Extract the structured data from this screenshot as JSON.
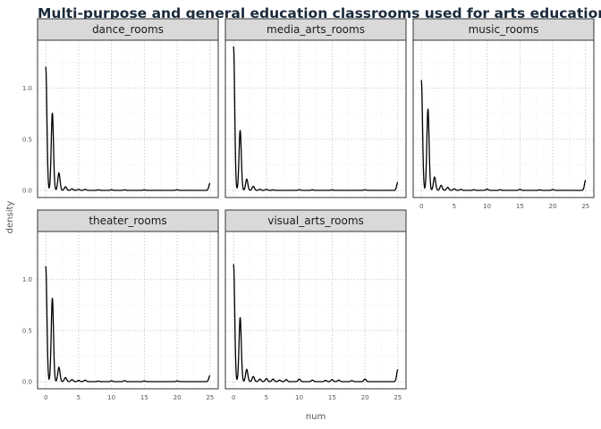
{
  "chart_data": {
    "type": "area",
    "title": "Multi-purpose and general education classrooms used for arts education",
    "xlabel": "num",
    "ylabel": "density",
    "xlim": [
      -1.25,
      26.25
    ],
    "ylim": [
      -0.07,
      1.47
    ],
    "x_ticks": [
      0,
      5,
      10,
      15,
      20,
      25
    ],
    "y_ticks": [
      0.0,
      0.5,
      1.0
    ],
    "y_tick_labels": [
      "0.0",
      "0.5",
      "1.0"
    ],
    "grid": true,
    "panels": [
      {
        "name": "dance_rooms",
        "peaks": [
          [
            0,
            1.21
          ],
          [
            1,
            0.76
          ],
          [
            2,
            0.17
          ],
          [
            3,
            0.035
          ],
          [
            4,
            0.015
          ],
          [
            5,
            0.01
          ],
          [
            6,
            0.01
          ],
          [
            8,
            0.005
          ],
          [
            10,
            0.006
          ],
          [
            12,
            0.005
          ],
          [
            15,
            0.005
          ],
          [
            20,
            0.006
          ],
          [
            25,
            0.07
          ]
        ]
      },
      {
        "name": "media_arts_rooms",
        "peaks": [
          [
            0,
            1.41
          ],
          [
            1,
            0.59
          ],
          [
            2,
            0.11
          ],
          [
            3,
            0.04
          ],
          [
            4,
            0.01
          ],
          [
            5,
            0.01
          ],
          [
            6,
            0.005
          ],
          [
            10,
            0.006
          ],
          [
            12,
            0.005
          ],
          [
            15,
            0.005
          ],
          [
            20,
            0.006
          ],
          [
            25,
            0.08
          ]
        ]
      },
      {
        "name": "music_rooms",
        "peaks": [
          [
            0,
            1.08
          ],
          [
            1,
            0.8
          ],
          [
            2,
            0.13
          ],
          [
            3,
            0.05
          ],
          [
            4,
            0.03
          ],
          [
            5,
            0.015
          ],
          [
            6,
            0.01
          ],
          [
            8,
            0.006
          ],
          [
            10,
            0.012
          ],
          [
            12,
            0.006
          ],
          [
            15,
            0.01
          ],
          [
            18,
            0.005
          ],
          [
            20,
            0.008
          ],
          [
            25,
            0.1
          ]
        ]
      },
      {
        "name": "theater_rooms",
        "peaks": [
          [
            0,
            1.13
          ],
          [
            1,
            0.82
          ],
          [
            2,
            0.14
          ],
          [
            3,
            0.04
          ],
          [
            4,
            0.02
          ],
          [
            5,
            0.012
          ],
          [
            6,
            0.015
          ],
          [
            8,
            0.005
          ],
          [
            10,
            0.008
          ],
          [
            12,
            0.01
          ],
          [
            15,
            0.006
          ],
          [
            20,
            0.007
          ],
          [
            25,
            0.06
          ]
        ]
      },
      {
        "name": "visual_arts_rooms",
        "peaks": [
          [
            0,
            1.15
          ],
          [
            1,
            0.63
          ],
          [
            2,
            0.12
          ],
          [
            3,
            0.05
          ],
          [
            4,
            0.025
          ],
          [
            5,
            0.03
          ],
          [
            6,
            0.025
          ],
          [
            7,
            0.015
          ],
          [
            8,
            0.02
          ],
          [
            10,
            0.025
          ],
          [
            12,
            0.015
          ],
          [
            14,
            0.012
          ],
          [
            15,
            0.02
          ],
          [
            16,
            0.015
          ],
          [
            18,
            0.01
          ],
          [
            20,
            0.025
          ],
          [
            25,
            0.12
          ]
        ]
      }
    ]
  }
}
